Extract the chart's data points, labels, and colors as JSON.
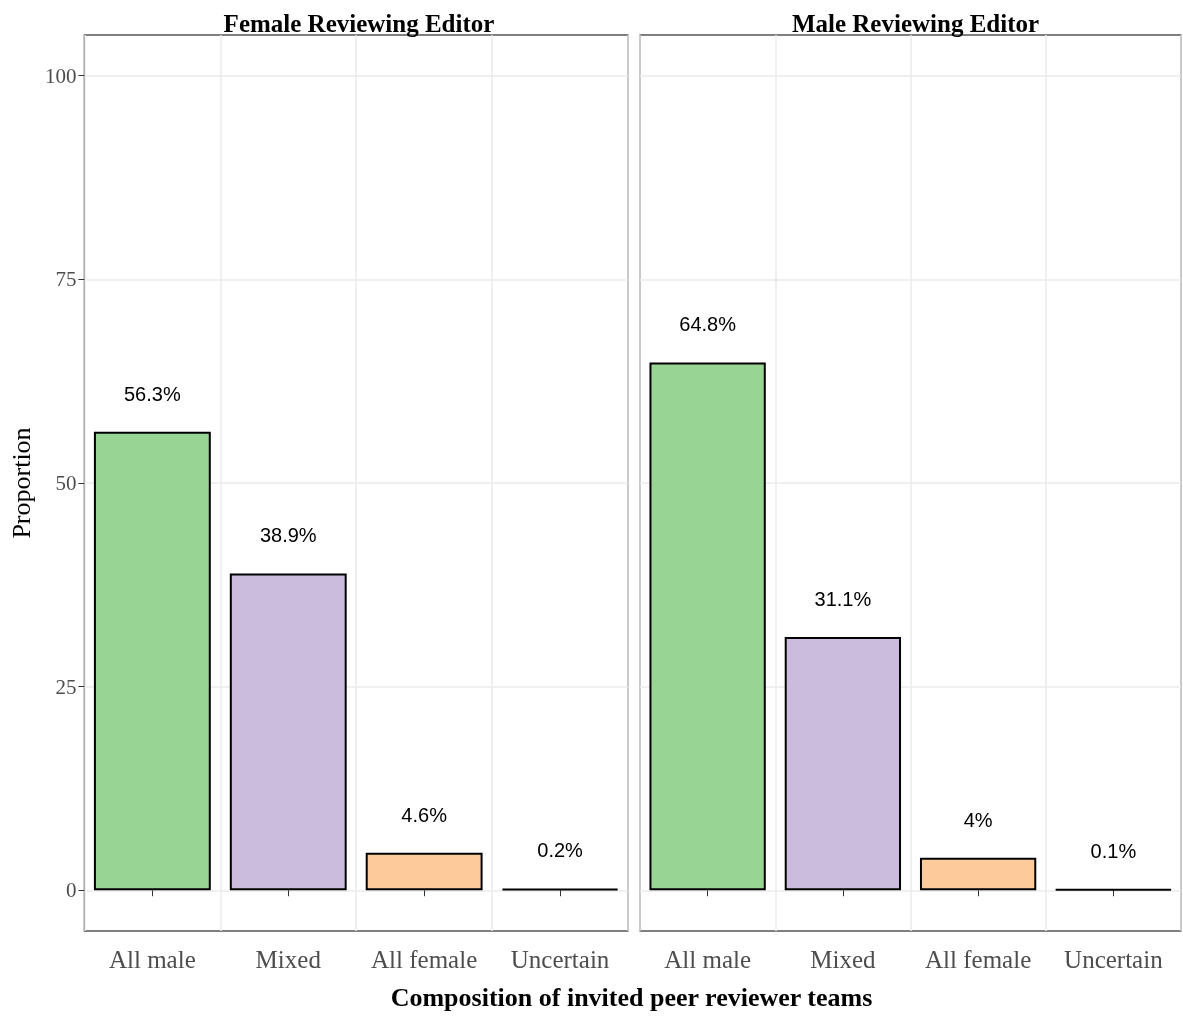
{
  "chart_data": [
    {
      "type": "bar",
      "title": "Female Reviewing Editor",
      "xlabel": "Composition of invited peer reviewer teams",
      "ylabel": "Proportion",
      "categories": [
        "All male",
        "Mixed",
        "All female",
        "Uncertain"
      ],
      "values": [
        56.3,
        38.9,
        4.6,
        0.2
      ],
      "value_labels": [
        "56.3%",
        "38.9%",
        "4.6%",
        "0.2%"
      ],
      "colors": [
        "#98d494",
        "#cbbcde",
        "#fdcb9b",
        "#000000"
      ],
      "ylim": [
        -5,
        105
      ],
      "yticks": [
        0,
        25,
        50,
        75,
        100
      ],
      "grid": true
    },
    {
      "type": "bar",
      "title": "Male Reviewing Editor",
      "categories": [
        "All male",
        "Mixed",
        "All female",
        "Uncertain"
      ],
      "values": [
        64.8,
        31.1,
        4,
        0.1
      ],
      "value_labels": [
        "64.8%",
        "31.1%",
        "4%",
        "0.1%"
      ],
      "colors": [
        "#98d494",
        "#cbbcde",
        "#fdcb9b",
        "#000000"
      ],
      "ylim": [
        -5,
        105
      ],
      "yticks": [
        0,
        25,
        50,
        75,
        100
      ],
      "grid": true,
      "tick_labels": "x"
    }
  ]
}
